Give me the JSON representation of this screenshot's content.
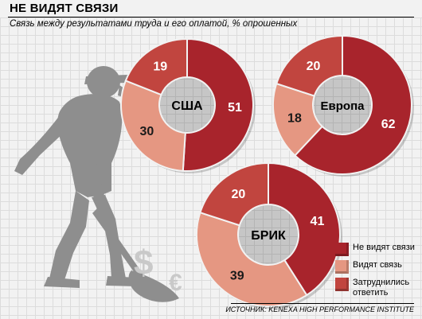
{
  "title": "НЕ ВИДЯТ СВЯЗИ",
  "subtitle": "Связь между результатами труда и его оплатой, % опрошенных",
  "source": "ИСТОЧНИК: KENEXA HIGH PERFORMANCE INSTITUTE",
  "colors": {
    "dark": "#a8242c",
    "light": "#e59782",
    "mid": "#c1453f"
  },
  "legend": [
    {
      "label": "Не видят связи",
      "color": "#a8242c"
    },
    {
      "label": "Видят связь",
      "color": "#e59782"
    },
    {
      "label": "Затруднились ответить",
      "color": "#c1453f"
    }
  ],
  "chart_data": [
    {
      "type": "pie",
      "title": "США",
      "categories": [
        "Не видят связи",
        "Видят связь",
        "Затруднились ответить"
      ],
      "values": [
        51,
        30,
        19
      ]
    },
    {
      "type": "pie",
      "title": "Европа",
      "categories": [
        "Не видят связи",
        "Видят связь",
        "Затруднились ответить"
      ],
      "values": [
        62,
        18,
        20
      ]
    },
    {
      "type": "pie",
      "title": "БРИК",
      "categories": [
        "Не видят связи",
        "Видят связь",
        "Затруднились ответить"
      ],
      "values": [
        41,
        39,
        20
      ]
    }
  ]
}
